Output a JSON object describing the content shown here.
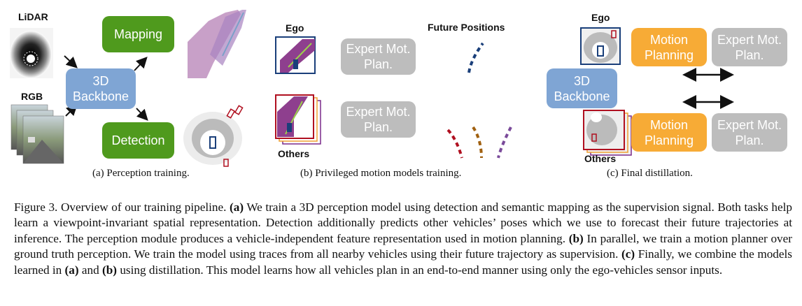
{
  "panel_a": {
    "lidar_label": "LiDAR",
    "rgb_label": "RGB",
    "backbone_label": "3D Backbone",
    "mapping_label": "Mapping",
    "detection_label": "Detection",
    "subcaption": "(a) Perception training."
  },
  "panel_b": {
    "ego_label": "Ego",
    "others_label": "Others",
    "future_label": "Future Positions",
    "expert_top_label": "Expert Mot. Plan.",
    "expert_bottom_label": "Expert Mot. Plan.",
    "subcaption": "(b) Privileged motion models training."
  },
  "panel_c": {
    "ego_label": "Ego",
    "others_label": "Others",
    "backbone_label": "3D Backbone",
    "motion_top_label": "Motion Planning",
    "motion_bottom_label": "Motion Planning",
    "expert_top_label": "Expert Mot. Plan.",
    "expert_bottom_label": "Expert Mot. Plan.",
    "subcaption": "(c) Final distillation."
  },
  "colors": {
    "green": "#4f9a1d",
    "blue": "#7fa5d4",
    "gray": "#bdbdbd",
    "orange": "#f7ab36",
    "map_purple": "#c8a0c8",
    "road_purple": "#8e3f8e",
    "ego_blue": "#1a3f7a",
    "others_red": "#b01020"
  },
  "caption": {
    "figure_label": "Figure 3.",
    "t1": " Overview of our training pipeline. ",
    "a_marker": "(a)",
    "t2": " We train a 3D perception model using detection and semantic mapping as the supervision signal. Both tasks help learn a viewpoint-invariant spatial representation. Detection additionally predicts other vehicles’ poses which we use to forecast their future trajectories at inference. The perception module produces a vehicle-independent feature representation used in motion planning. ",
    "b_marker": "(b)",
    "t3": " In parallel, we train a motion planner over ground truth perception. We train the model using traces from all nearby vehicles using their future trajectory as supervision. ",
    "c_marker": "(c)",
    "t4": " Finally, we combine the models learned in ",
    "a_ref": "(a)",
    "t5": " and ",
    "b_ref": "(b)",
    "t6": " using distillation. This model learns how all vehicles plan in an end-to-end manner using only the ego-vehicles sensor inputs."
  }
}
